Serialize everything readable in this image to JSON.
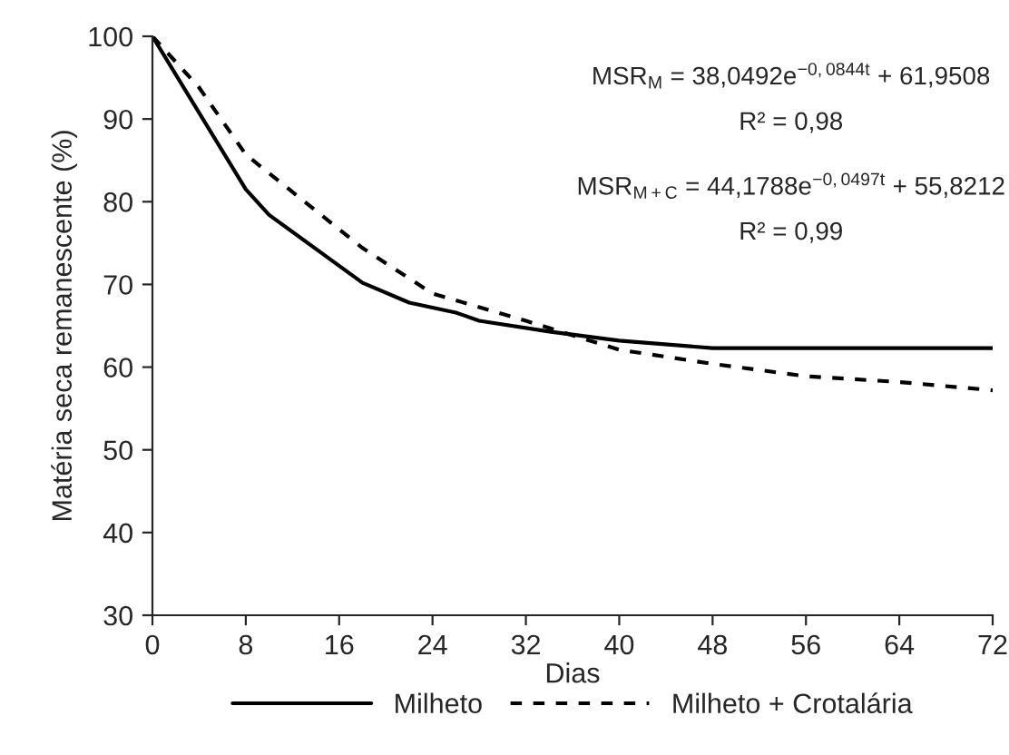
{
  "chart_data": {
    "type": "line",
    "xlabel": "Dias",
    "ylabel": "Matéria seca remanescente (%)",
    "xlim": [
      0,
      72
    ],
    "xticks": [
      0,
      8,
      16,
      24,
      32,
      40,
      48,
      56,
      64,
      72
    ],
    "ylim": [
      30,
      100
    ],
    "yticks": [
      30,
      40,
      50,
      60,
      70,
      80,
      90,
      100
    ],
    "grid": false,
    "legend": "bottom",
    "marker": "none",
    "series": [
      {
        "name": "Milheto",
        "color": "#000000",
        "line_style": "solid",
        "x": [
          0,
          8,
          10,
          18,
          22,
          26,
          28,
          34,
          40,
          48,
          72
        ],
        "values": [
          100,
          81.5,
          78.4,
          70.2,
          67.8,
          66.6,
          65.6,
          64.3,
          63.2,
          62.3,
          62.3
        ]
      },
      {
        "name": "Milheto + Crotalária",
        "color": "#000000",
        "line_style": "dashed",
        "x": [
          0,
          4,
          8,
          18,
          24,
          32,
          40,
          48,
          56,
          64,
          72
        ],
        "values": [
          100,
          93.8,
          85.7,
          74.4,
          68.9,
          65.6,
          62.1,
          60.4,
          58.9,
          58.2,
          57.2
        ]
      }
    ],
    "annotations": [
      "MSR$_{M}$ = 38,0492e$^{−0,0844t}$ + 61,9508",
      "R² = 0,98",
      "MSR$_{M+C}$ = 44,1788e$^{−0,0497t}$ + 55,8212",
      "R² = 0,99"
    ]
  }
}
